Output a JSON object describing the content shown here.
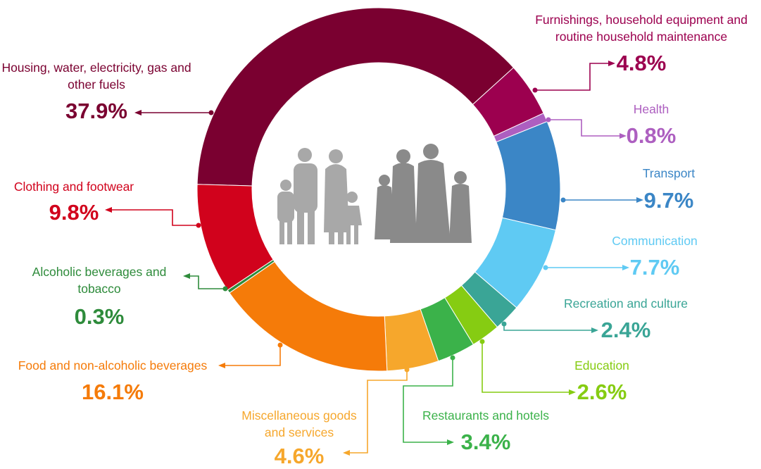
{
  "chart_data": {
    "type": "pie",
    "categories": [
      "Housing, water, electricity, gas and other fuels",
      "Furnishings, household equipment and routine household maintenance",
      "Health",
      "Transport",
      "Communication",
      "Recreation and culture",
      "Education",
      "Restaurants and hotels",
      "Miscellaneous goods and services",
      "Food and non-alcoholic beverages",
      "Alcoholic beverages and tobacco",
      "Clothing and footwear"
    ],
    "values": [
      37.9,
      4.8,
      0.8,
      9.7,
      7.7,
      2.4,
      2.6,
      3.4,
      4.6,
      16.1,
      0.3,
      9.8
    ],
    "value_labels": [
      "37.9%",
      "4.8%",
      "0.8%",
      "9.7%",
      "7.7%",
      "2.4%",
      "2.6%",
      "3.4%",
      "4.6%",
      "16.1%",
      "0.3%",
      "9.8%"
    ],
    "colors": [
      "#7a0030",
      "#9c004f",
      "#ad5fc0",
      "#3b86c6",
      "#5fcaf3",
      "#3aa596",
      "#86cc12",
      "#3bb24a",
      "#f6a72c",
      "#f57b09",
      "#2e8b3b",
      "#d1021c"
    ]
  }
}
